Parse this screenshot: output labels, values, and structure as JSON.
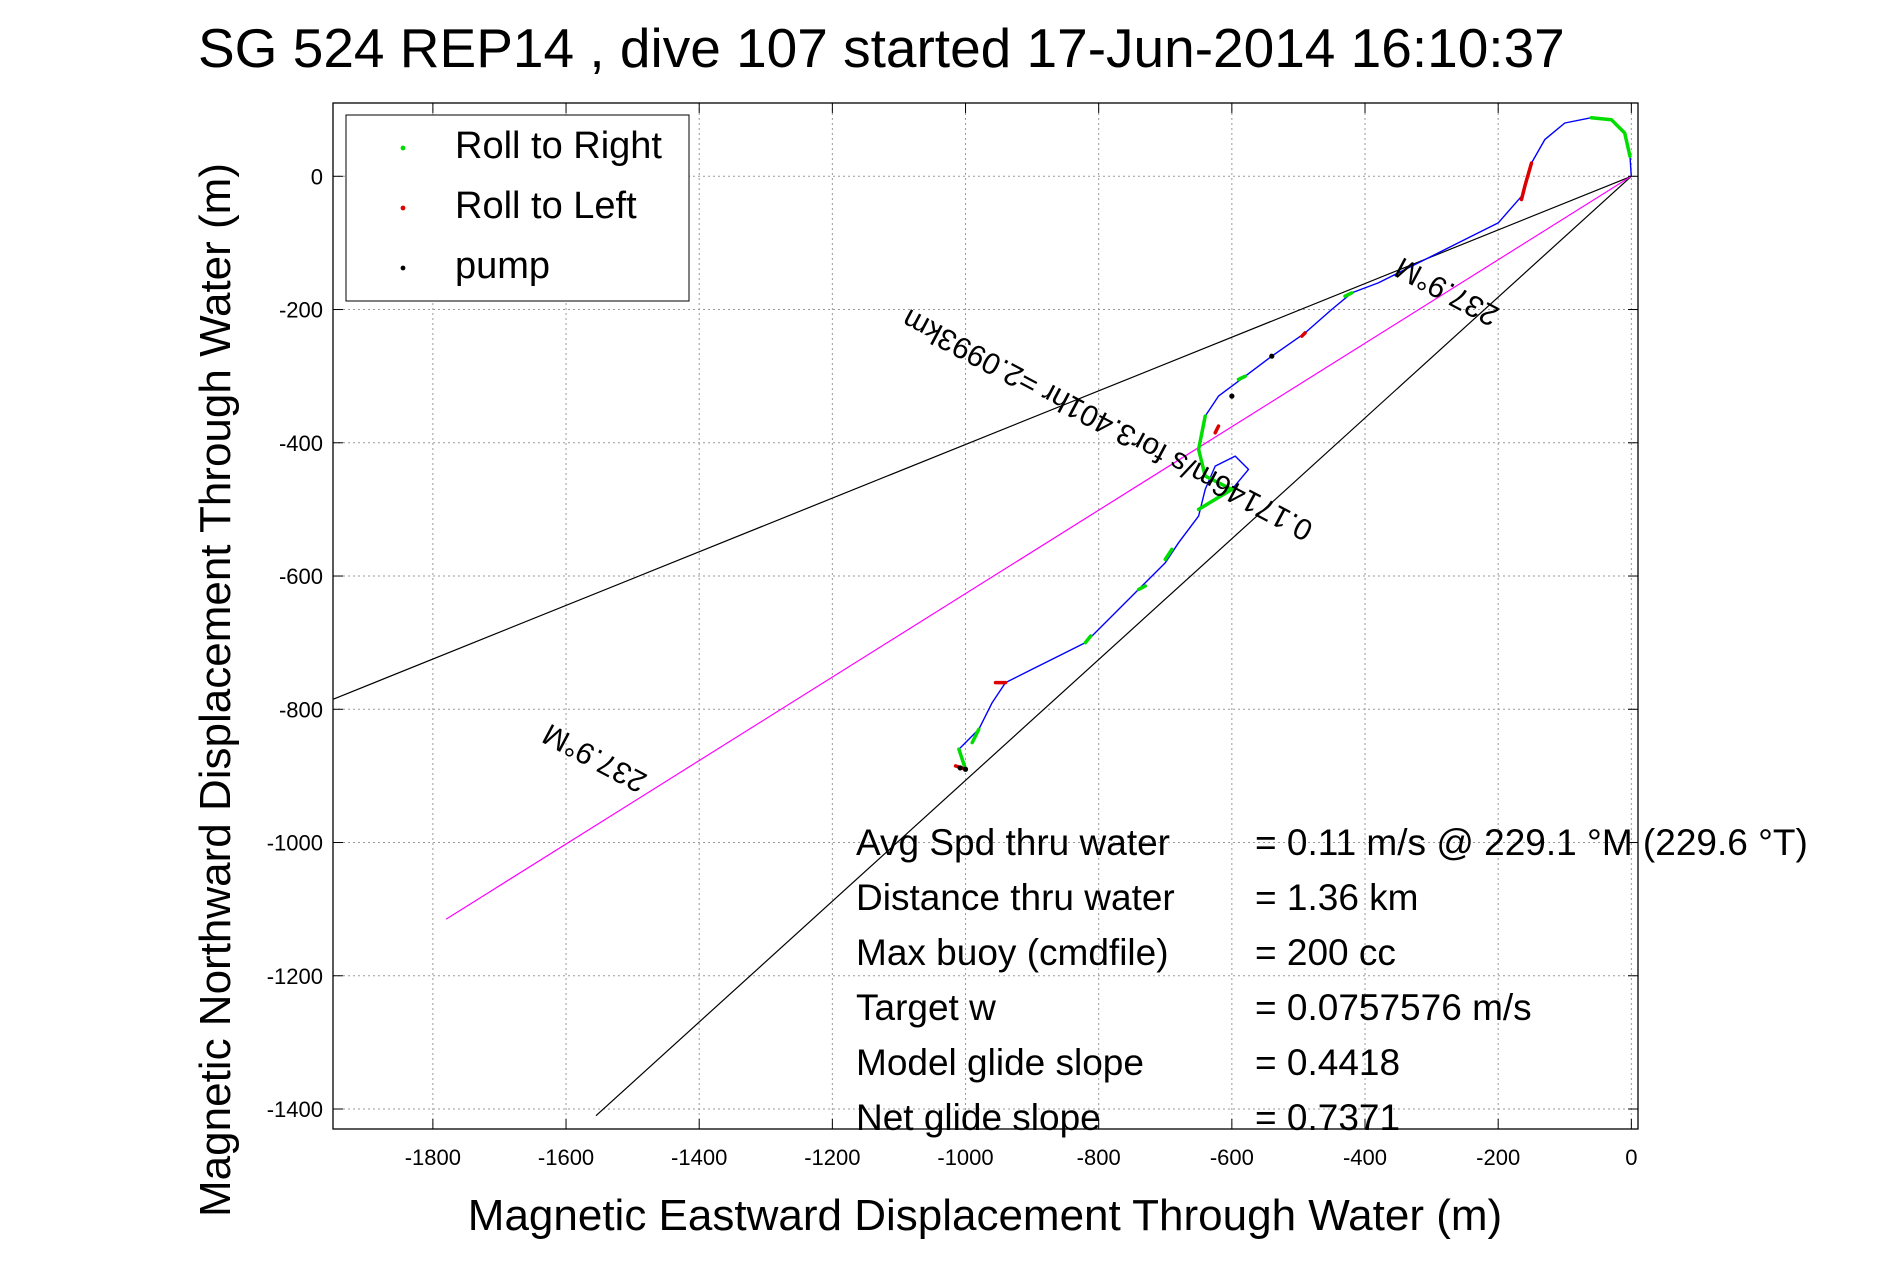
{
  "chart_data": {
    "type": "line",
    "title": "SG 524   REP14  , dive 107 started 17-Jun-2014 16:10:37",
    "xlabel": "Magnetic Eastward Displacement Through Water (m)",
    "ylabel": "Magnetic Northward Displacement Through Water (m)",
    "xlim": [
      -1950,
      10
    ],
    "ylim": [
      -1430,
      110
    ],
    "grid": true,
    "x_ticks": [
      -1800,
      -1600,
      -1400,
      -1200,
      -1000,
      -800,
      -600,
      -400,
      -200,
      0
    ],
    "y_ticks": [
      0,
      -200,
      -400,
      -600,
      -800,
      -1000,
      -1200,
      -1400
    ],
    "legend": {
      "placement": "top-left",
      "entries": [
        {
          "label": "Roll to Right",
          "color": "#00dd00"
        },
        {
          "label": "Roll to Left",
          "color": "#dd0000"
        },
        {
          "label": "pump",
          "color": "#000000"
        }
      ]
    },
    "track": {
      "color": "#0000ff",
      "points": [
        [
          0,
          0
        ],
        [
          -2,
          30
        ],
        [
          -10,
          65
        ],
        [
          -30,
          85
        ],
        [
          -60,
          88
        ],
        [
          -100,
          80
        ],
        [
          -130,
          55
        ],
        [
          -150,
          20
        ],
        [
          -165,
          -30
        ],
        [
          -200,
          -70
        ],
        [
          -260,
          -100
        ],
        [
          -320,
          -130
        ],
        [
          -380,
          -160
        ],
        [
          -420,
          -175
        ],
        [
          -450,
          -200
        ],
        [
          -490,
          -235
        ],
        [
          -540,
          -270
        ],
        [
          -580,
          -300
        ],
        [
          -620,
          -330
        ],
        [
          -640,
          -360
        ],
        [
          -650,
          -410
        ],
        [
          -640,
          -450
        ],
        [
          -600,
          -470
        ],
        [
          -575,
          -440
        ],
        [
          -595,
          -420
        ],
        [
          -625,
          -435
        ],
        [
          -640,
          -470
        ],
        [
          -650,
          -510
        ],
        [
          -680,
          -550
        ],
        [
          -700,
          -580
        ],
        [
          -740,
          -620
        ],
        [
          -780,
          -660
        ],
        [
          -820,
          -700
        ],
        [
          -860,
          -720
        ],
        [
          -900,
          -740
        ],
        [
          -940,
          -760
        ],
        [
          -960,
          -790
        ],
        [
          -980,
          -830
        ],
        [
          -1010,
          -860
        ],
        [
          -1000,
          -890
        ]
      ]
    },
    "roll_right_segments": [
      [
        [
          -2,
          30
        ],
        [
          -10,
          65
        ],
        [
          -30,
          85
        ],
        [
          -60,
          88
        ]
      ],
      [
        [
          -640,
          -360
        ],
        [
          -650,
          -410
        ],
        [
          -640,
          -450
        ],
        [
          -600,
          -470
        ]
      ],
      [
        [
          -600,
          -470
        ],
        [
          -625,
          -485
        ],
        [
          -650,
          -500
        ]
      ],
      [
        [
          -700,
          -575
        ],
        [
          -690,
          -560
        ]
      ],
      [
        [
          -740,
          -620
        ],
        [
          -730,
          -615
        ]
      ],
      [
        [
          -820,
          -700
        ],
        [
          -812,
          -690
        ]
      ],
      [
        [
          -980,
          -830
        ],
        [
          -990,
          -850
        ]
      ],
      [
        [
          -1010,
          -860
        ],
        [
          -1000,
          -890
        ]
      ],
      [
        [
          -420,
          -175
        ],
        [
          -430,
          -180
        ]
      ],
      [
        [
          -580,
          -300
        ],
        [
          -590,
          -305
        ]
      ]
    ],
    "roll_left_segments": [
      [
        [
          -150,
          20
        ],
        [
          -160,
          -15
        ],
        [
          -165,
          -35
        ]
      ],
      [
        [
          -490,
          -235
        ],
        [
          -495,
          -240
        ]
      ],
      [
        [
          -620,
          -375
        ],
        [
          -625,
          -385
        ]
      ],
      [
        [
          -940,
          -760
        ],
        [
          -955,
          -760
        ]
      ],
      [
        [
          -1000,
          -890
        ],
        [
          -1015,
          -885
        ]
      ]
    ],
    "pump_points": [
      [
        -1008,
        -888
      ],
      [
        -1000,
        -890
      ],
      [
        -540,
        -270
      ],
      [
        -600,
        -330
      ]
    ],
    "reference_lines": [
      {
        "name": "upper bound",
        "color": "#000000",
        "from": [
          0,
          0
        ],
        "to": [
          -1950,
          -785
        ]
      },
      {
        "name": "lower bound",
        "color": "#000000",
        "from": [
          0,
          0
        ],
        "to": [
          -1555,
          -1410
        ]
      },
      {
        "name": "heading line",
        "color": "#ff00ff",
        "from": [
          0,
          0
        ],
        "to": [
          -1780,
          -1115
        ]
      }
    ],
    "annotations": [
      {
        "text": "237.9°M",
        "x": -270,
        "y": -160,
        "rotation": 208
      },
      {
        "text": "0.17146m/s for3.401hr =2.0993km",
        "x": -780,
        "y": -360,
        "rotation": 208
      },
      {
        "text": "237.9°M",
        "x": -1550,
        "y": -860,
        "rotation": 208
      }
    ],
    "stats": [
      {
        "label": "Avg Spd thru water",
        "value": "=  0.11 m/s @ 229.1 °M (229.6 °T)"
      },
      {
        "label": "Distance thru water",
        "value": "=  1.36 km"
      },
      {
        "label": "Max buoy (cmdfile)",
        "value": "= 200 cc"
      },
      {
        "label": "Target w",
        "value": "= 0.0757576 m/s"
      },
      {
        "label": "Model glide slope",
        "value": "= 0.4418"
      },
      {
        "label": "Net glide slope",
        "value": "= 0.7371"
      }
    ]
  }
}
